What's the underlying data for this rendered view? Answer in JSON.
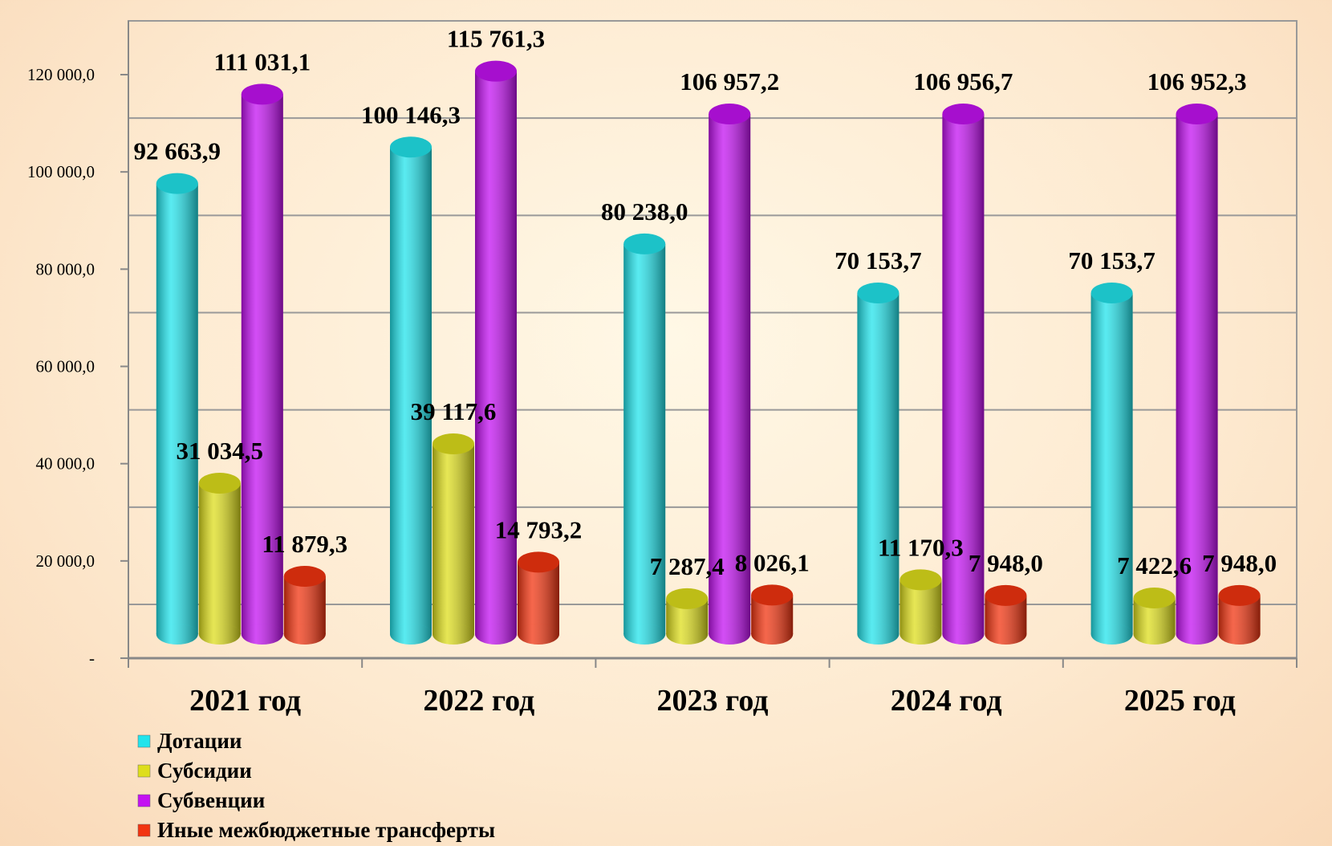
{
  "chart_data": {
    "type": "bar",
    "categories": [
      "2021 год",
      "2022 год",
      "2023 год",
      "2024 год",
      "2025 год"
    ],
    "series": [
      {
        "name": "Дотации",
        "color": "#22e4ec",
        "values": [
          92663.9,
          100146.3,
          80238.0,
          70153.7,
          70153.7
        ],
        "value_labels": [
          "92 663,9",
          "100 146,3",
          "80 238,0",
          "70 153,7",
          "70 153,7"
        ]
      },
      {
        "name": "Субсидии",
        "color": "#dede1c",
        "values": [
          31034.5,
          39117.6,
          7287.4,
          11170.3,
          7422.6
        ],
        "value_labels": [
          "31 034,5",
          "39 117,6",
          "7 287,4",
          "11 170,3",
          "7 422,6"
        ]
      },
      {
        "name": "Субвенции",
        "color": "#c412f2",
        "values": [
          111031.1,
          115761.3,
          106957.2,
          106956.7,
          106952.3
        ],
        "value_labels": [
          "111 031,1",
          "115 761,3",
          "106 957,2",
          "106 956,7",
          "106 952,3"
        ]
      },
      {
        "name": "Иные межбюджетные трансферты",
        "color": "#f23410",
        "values": [
          11879.3,
          14793.2,
          8026.1,
          7948.0,
          7948.0
        ],
        "value_labels": [
          "11 879,3",
          "14 793,2",
          "8 026,1",
          "7 948,0",
          "7 948,0"
        ]
      }
    ],
    "ylim": [
      0,
      120000
    ],
    "yticks": [
      {
        "value": 0,
        "label": "-"
      },
      {
        "value": 20000,
        "label": "20 000,0"
      },
      {
        "value": 40000,
        "label": "40 000,0"
      },
      {
        "value": 60000,
        "label": "60 000,0"
      },
      {
        "value": 80000,
        "label": "80 000,0"
      },
      {
        "value": 100000,
        "label": "100 000,0"
      },
      {
        "value": 120000,
        "label": "120 000,0"
      }
    ],
    "grid": true,
    "legend": "bottom-left"
  }
}
